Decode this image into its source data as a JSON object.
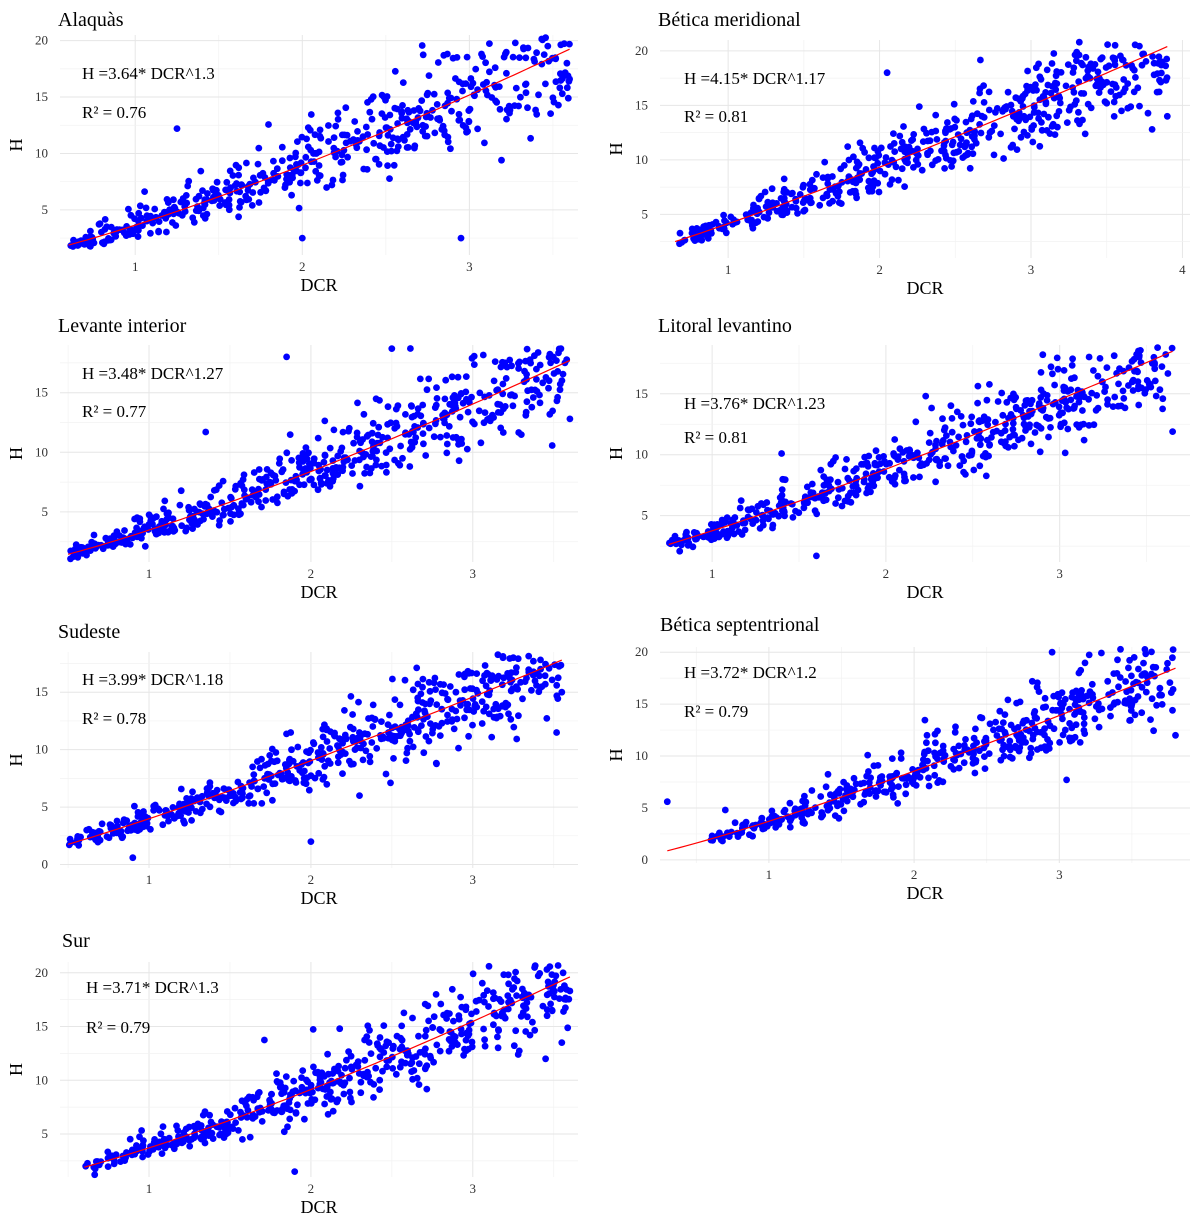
{
  "colors": {
    "points": "#0000ff",
    "fit_line": "#ff0000"
  },
  "chart_data": [
    {
      "type": "scatter",
      "title": "Alaquàs",
      "xlabel": "DCR",
      "ylabel": "H",
      "xlim": [
        0.55,
        3.65
      ],
      "ylim": [
        1,
        20.5
      ],
      "xticks": [
        1,
        2,
        3
      ],
      "yticks": [
        5,
        10,
        15,
        20
      ],
      "equation": "H =3.64* DCR^1.3",
      "r2": "R² = 0.76",
      "fit": {
        "a": 3.64,
        "b": 1.3,
        "x_from": 0.6,
        "x_to": 3.6
      },
      "x_range": [
        0.6,
        3.6
      ],
      "spread": 0.16,
      "n": 520,
      "outliers": [
        [
          3.6,
          16.6
        ],
        [
          2.95,
          2.5
        ],
        [
          1.25,
          12.2
        ],
        [
          3.3,
          18.5
        ],
        [
          2.0,
          2.5
        ]
      ],
      "grid": true
    },
    {
      "type": "scatter",
      "title": "Bética meridional",
      "xlabel": "DCR",
      "ylabel": "H",
      "xlim": [
        0.55,
        4.05
      ],
      "ylim": [
        1,
        21
      ],
      "xticks": [
        1,
        2,
        3,
        4
      ],
      "yticks": [
        5,
        10,
        15,
        20
      ],
      "equation": "H =4.15* DCR^1.17",
      "r2": "R² = 0.81",
      "fit": {
        "a": 4.15,
        "b": 1.17,
        "x_from": 0.65,
        "x_to": 3.9
      },
      "x_range": [
        0.65,
        3.9
      ],
      "spread": 0.14,
      "n": 560,
      "outliers": [
        [
          3.9,
          14.0
        ],
        [
          3.8,
          12.8
        ],
        [
          3.5,
          15.2
        ],
        [
          3.3,
          19.1
        ],
        [
          2.05,
          18.0
        ]
      ],
      "grid": true
    },
    {
      "type": "scatter",
      "title": "Levante interior",
      "xlabel": "DCR",
      "ylabel": "H",
      "xlim": [
        0.45,
        3.65
      ],
      "ylim": [
        0.8,
        19
      ],
      "xticks": [
        1,
        2,
        3
      ],
      "yticks": [
        5,
        10,
        15
      ],
      "equation": "H =3.48* DCR^1.27",
      "r2": "R² = 0.77",
      "fit": {
        "a": 3.48,
        "b": 1.27,
        "x_from": 0.5,
        "x_to": 3.6
      },
      "x_range": [
        0.5,
        3.6
      ],
      "spread": 0.15,
      "n": 560,
      "outliers": [
        [
          1.85,
          18.0
        ],
        [
          2.5,
          18.7
        ],
        [
          3.6,
          12.8
        ],
        [
          1.35,
          11.7
        ],
        [
          3.05,
          10.8
        ]
      ],
      "grid": true
    },
    {
      "type": "scatter",
      "title": "Litoral levantino",
      "xlabel": "DCR",
      "ylabel": "H",
      "xlim": [
        0.7,
        3.75
      ],
      "ylim": [
        1.2,
        19
      ],
      "xticks": [
        1,
        2,
        3
      ],
      "yticks": [
        5,
        10,
        15
      ],
      "equation": "H =3.76* DCR^1.23",
      "r2": "R² = 0.81",
      "fit": {
        "a": 3.76,
        "b": 1.23,
        "x_from": 0.75,
        "x_to": 3.65
      },
      "x_range": [
        0.75,
        3.65
      ],
      "spread": 0.13,
      "n": 560,
      "outliers": [
        [
          3.65,
          11.9
        ],
        [
          3.45,
          16.0
        ],
        [
          1.6,
          1.7
        ],
        [
          1.4,
          10.1
        ]
      ],
      "grid": true
    },
    {
      "type": "scatter",
      "title": "Sudeste",
      "xlabel": "DCR",
      "ylabel": "H",
      "xlim": [
        0.45,
        3.65
      ],
      "ylim": [
        -0.3,
        18.5
      ],
      "xticks": [
        1,
        2,
        3
      ],
      "yticks": [
        0,
        5,
        10,
        15
      ],
      "equation": "H =3.99* DCR^1.18",
      "r2": "R² = 0.78",
      "fit": {
        "a": 3.99,
        "b": 1.18,
        "x_from": 0.5,
        "x_to": 3.55
      },
      "x_range": [
        0.5,
        3.55
      ],
      "spread": 0.15,
      "n": 580,
      "outliers": [
        [
          2.0,
          2.0
        ],
        [
          0.9,
          0.6
        ],
        [
          3.25,
          18.0
        ],
        [
          3.55,
          15.0
        ],
        [
          2.3,
          6.0
        ]
      ],
      "grid": true
    },
    {
      "type": "scatter",
      "title": "Bética septentrional",
      "xlabel": "DCR",
      "ylabel": "H",
      "xlim": [
        0.25,
        3.9
      ],
      "ylim": [
        -0.3,
        20.5
      ],
      "xticks": [
        1,
        2,
        3
      ],
      "yticks": [
        0,
        5,
        10,
        15,
        20
      ],
      "equation": "H =3.72* DCR^1.2",
      "r2": "R² = 0.79",
      "fit": {
        "a": 3.72,
        "b": 1.2,
        "x_from": 0.3,
        "x_to": 3.8
      },
      "x_range": [
        0.6,
        3.8
      ],
      "spread": 0.15,
      "n": 500,
      "outliers": [
        [
          0.3,
          5.6
        ],
        [
          3.8,
          12.0
        ],
        [
          2.95,
          20.0
        ],
        [
          3.05,
          7.7
        ],
        [
          0.7,
          4.8
        ]
      ],
      "grid": true
    },
    {
      "type": "scatter",
      "title": "Sur",
      "xlabel": "DCR",
      "ylabel": "H",
      "xlim": [
        0.45,
        3.65
      ],
      "ylim": [
        1,
        21
      ],
      "xticks": [
        1,
        2,
        3
      ],
      "yticks": [
        5,
        10,
        15,
        20
      ],
      "equation": "H =3.71* DCR^1.3",
      "r2": "R² = 0.79",
      "fit": {
        "a": 3.71,
        "b": 1.3,
        "x_from": 0.6,
        "x_to": 3.6
      },
      "x_range": [
        0.6,
        3.6
      ],
      "spread": 0.15,
      "n": 540,
      "outliers": [
        [
          3.1,
          20.6
        ],
        [
          3.6,
          18.3
        ],
        [
          3.55,
          13.5
        ],
        [
          3.45,
          12.0
        ],
        [
          1.9,
          1.5
        ]
      ],
      "grid": true
    }
  ]
}
